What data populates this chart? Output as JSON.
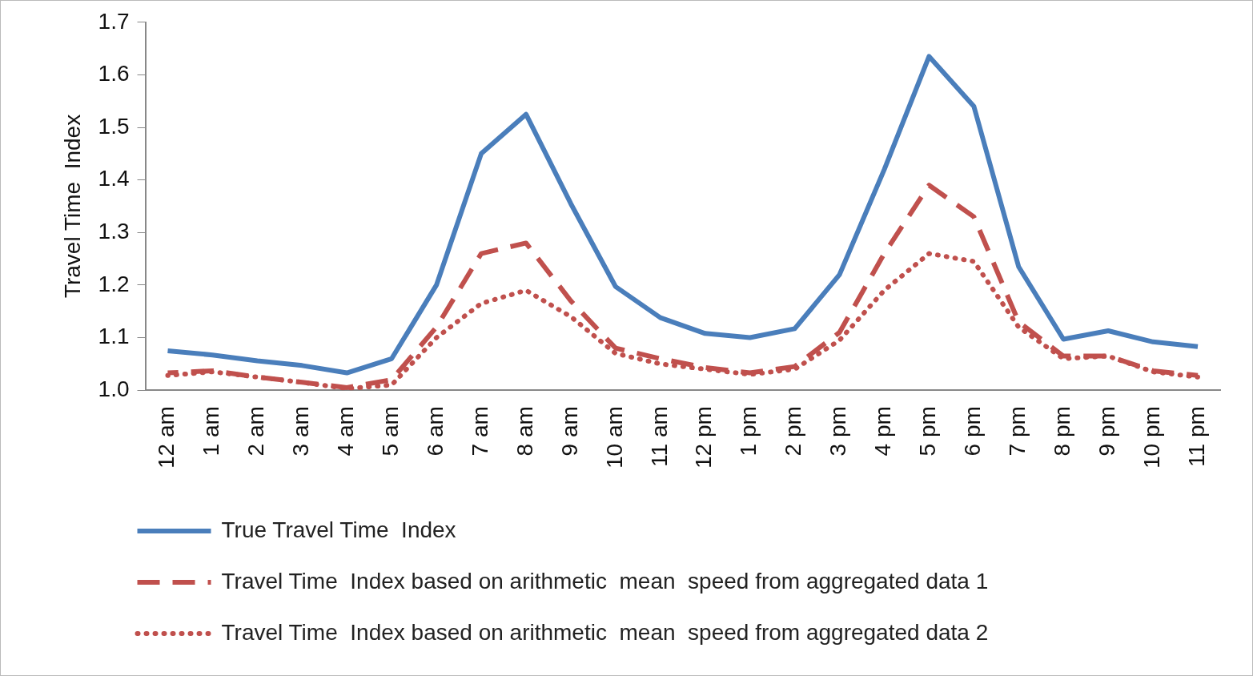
{
  "chart_data": {
    "type": "line",
    "ylabel": "Travel Time  Index",
    "categories": [
      "12 am",
      "1 am",
      "2 am",
      "3 am",
      "4 am",
      "5 am",
      "6 am",
      "7 am",
      "8 am",
      "9 am",
      "10 am",
      "11 am",
      "12 pm",
      "1 pm",
      "2 pm",
      "3 pm",
      "4 pm",
      "5 pm",
      "6 pm",
      "7 pm",
      "8 pm",
      "9 pm",
      "10 pm",
      "11 pm"
    ],
    "series": [
      {
        "name": "True Travel Time  Index",
        "color": "#4a7ebb",
        "line_style": "solid",
        "values": [
          1.075,
          1.067,
          1.056,
          1.047,
          1.033,
          1.06,
          1.2,
          1.45,
          1.525,
          1.355,
          1.197,
          1.138,
          1.108,
          1.1,
          1.117,
          1.22,
          1.42,
          1.635,
          1.54,
          1.235,
          1.097,
          1.113,
          1.092,
          1.083
        ]
      },
      {
        "name": "Travel Time  Index based on arithmetic  mean  speed from aggregated data 1",
        "color": "#c0504d",
        "line_style": "dashed",
        "values": [
          1.033,
          1.037,
          1.025,
          1.015,
          1.005,
          1.02,
          1.12,
          1.26,
          1.28,
          1.17,
          1.08,
          1.06,
          1.043,
          1.033,
          1.045,
          1.11,
          1.26,
          1.39,
          1.33,
          1.13,
          1.065,
          1.065,
          1.037,
          1.028
        ]
      },
      {
        "name": "Travel Time  Index based on arithmetic  mean  speed from aggregated data 2",
        "color": "#c0504d",
        "line_style": "dotted",
        "values": [
          1.028,
          1.035,
          1.025,
          1.015,
          1.003,
          1.01,
          1.1,
          1.165,
          1.19,
          1.14,
          1.07,
          1.05,
          1.04,
          1.03,
          1.04,
          1.095,
          1.19,
          1.26,
          1.245,
          1.12,
          1.06,
          1.065,
          1.035,
          1.025
        ]
      }
    ],
    "ylim": [
      1.0,
      1.7
    ],
    "yticks": [
      {
        "value": 1.0,
        "label": "1.0"
      },
      {
        "value": 1.1,
        "label": "1.1"
      },
      {
        "value": 1.2,
        "label": "1.2"
      },
      {
        "value": 1.3,
        "label": "1.3"
      },
      {
        "value": 1.4,
        "label": "1.4"
      },
      {
        "value": 1.5,
        "label": "1.5"
      },
      {
        "value": 1.6,
        "label": "1.6"
      },
      {
        "value": 1.7,
        "label": "1.7"
      }
    ],
    "grid": false,
    "legend": "bottom left",
    "marker": "none"
  }
}
